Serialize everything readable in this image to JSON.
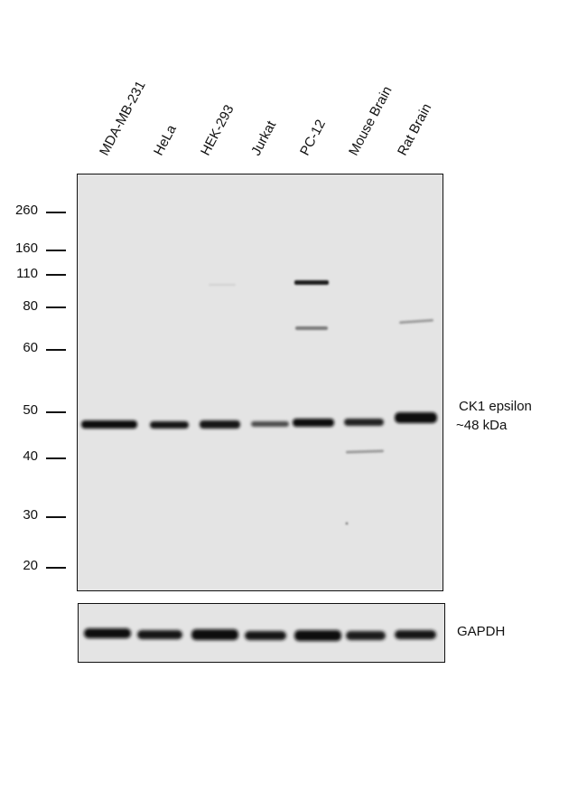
{
  "lanes": [
    "MDA-MB-231",
    "HeLa",
    "HEK-293",
    "Jurkat",
    "PC-12",
    "Mouse Brain",
    "Rat Brain"
  ],
  "mw_markers": [
    "260",
    "160",
    "110",
    "80",
    "60",
    "50",
    "40",
    "30",
    "20"
  ],
  "target": {
    "name": "CK1 epsilon",
    "size": "~48 kDa"
  },
  "loading_control": "GAPDH",
  "colors": {
    "membrane": "#e4e4e4",
    "band": "#111111",
    "frame": "#111111"
  }
}
